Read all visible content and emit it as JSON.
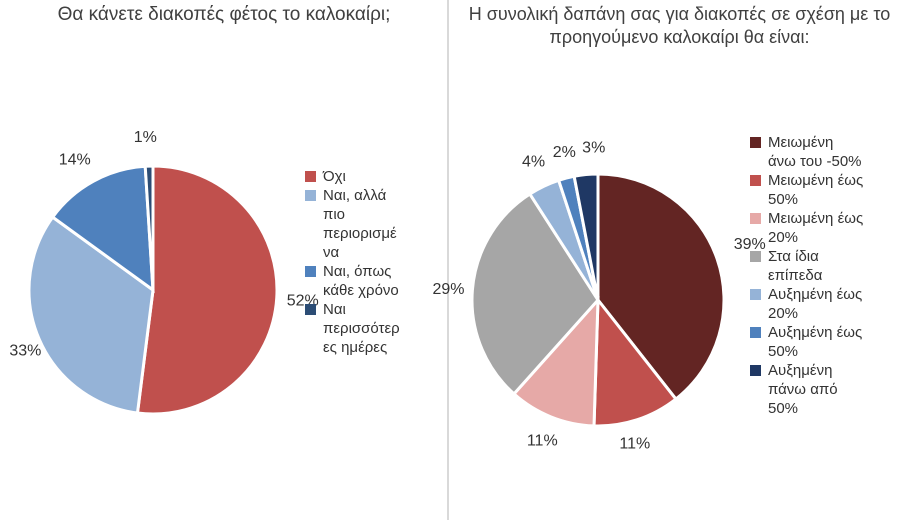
{
  "chart_data": [
    {
      "type": "pie",
      "title": "Θα κάνετε διακοπές φέτος το καλοκαίρι;",
      "categories": [
        "Όχι",
        "Ναι, αλλά πιο περιορισμένα",
        "Ναι, όπως κάθε χρόνο",
        "Ναι περισσότερες ημέρες"
      ],
      "values": [
        52,
        33,
        14,
        1
      ],
      "labels": [
        "52%",
        "33%",
        "14%",
        "1%"
      ],
      "legend_lines": [
        [
          "Όχι"
        ],
        [
          "Ναι, αλλά",
          "πιο",
          "περιορισμέ",
          "να"
        ],
        [
          "Ναι, όπως",
          "κάθε χρόνο"
        ],
        [
          "Ναι",
          "περισσότερ",
          "ες ημέρες"
        ]
      ],
      "colors": [
        "#c0504d",
        "#95b3d7",
        "#4f81bd",
        "#2c4d75"
      ],
      "legend_position": "right"
    },
    {
      "type": "pie",
      "title": "Η συνολική δαπάνη σας για διακοπές σε σχέση με το προηγούμενο καλοκαίρι θα είναι:",
      "categories": [
        "Μειωμένη άνω του -50%",
        "Μειωμένη έως 50%",
        "Μειωμένη έως 20%",
        "Στα ίδια επίπεδα",
        "Αυξημένη έως 20%",
        "Αυξημένη έως 50%",
        "Αυξημένη πάνω από 50%"
      ],
      "values": [
        39,
        11,
        11,
        29,
        4,
        2,
        3
      ],
      "labels": [
        "39%",
        "11%",
        "11%",
        "29%",
        "4%",
        "2%",
        "3%"
      ],
      "legend_lines": [
        [
          "Μειωμένη",
          "άνω του -50%"
        ],
        [
          "Μειωμένη έως",
          "50%"
        ],
        [
          "Μειωμένη έως",
          "20%"
        ],
        [
          "Στα ίδια",
          "επίπεδα"
        ],
        [
          "Αυξημένη έως",
          "20%"
        ],
        [
          "Αυξημένη έως",
          "50%"
        ],
        [
          "Αυξημένη",
          "πάνω από",
          "50%"
        ]
      ],
      "colors": [
        "#632523",
        "#c0504d",
        "#e6a9a7",
        "#a6a6a6",
        "#95b3d7",
        "#4f81bd",
        "#1f3864"
      ],
      "legend_position": "right"
    }
  ]
}
